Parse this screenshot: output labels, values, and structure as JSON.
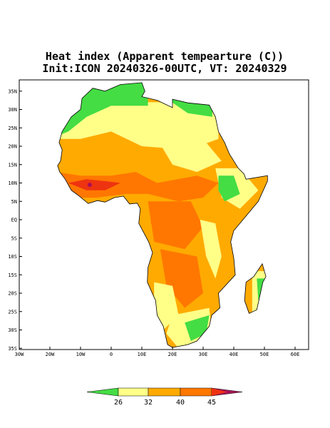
{
  "title": "Heat index (Apparent tempearture (C))",
  "subtitle": "Init:ICON 20240326-00UTC, VT: 20240329",
  "lon_labels": [
    "30W",
    "20W",
    "10W",
    "0",
    "10E",
    "20E",
    "30E",
    "40E",
    "50E",
    "60E"
  ],
  "lat_labels": [
    "35N",
    "30N",
    "25N",
    "20N",
    "15N",
    "10N",
    "5N",
    "EQ",
    "5S",
    "10S",
    "15S",
    "20S",
    "25S",
    "30S",
    "35S"
  ],
  "colorbar": {
    "labels": [
      26,
      32,
      40,
      45
    ]
  }
}
